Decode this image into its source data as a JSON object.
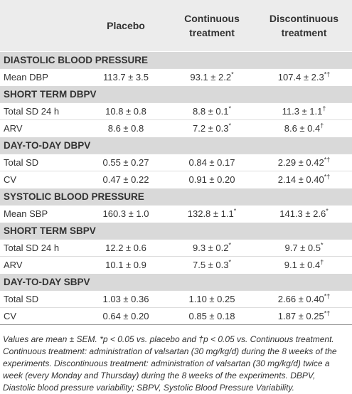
{
  "table": {
    "columns": [
      "",
      "Placebo",
      "Continuous treatment",
      "Discontinuous treatment"
    ],
    "sections": [
      {
        "title": "DIASTOLIC BLOOD PRESSURE",
        "rows": [
          {
            "label": "Mean DBP",
            "values": [
              {
                "text": "113.7 ± 3.5"
              },
              {
                "text": "93.1 ± 2.2",
                "sup": "*"
              },
              {
                "text": "107.4 ± 2.3",
                "sup": "*†"
              }
            ]
          }
        ]
      },
      {
        "title": "SHORT TERM DBPV",
        "rows": [
          {
            "label": "Total SD 24 h",
            "values": [
              {
                "text": "10.8 ± 0.8"
              },
              {
                "text": "8.8 ± 0.1",
                "sup": "*"
              },
              {
                "text": "11.3 ± 1.1",
                "sup": "†"
              }
            ]
          },
          {
            "label": "ARV",
            "values": [
              {
                "text": "8.6 ± 0.8"
              },
              {
                "text": "7.2 ± 0.3",
                "sup": "*"
              },
              {
                "text": "8.6 ± 0.4",
                "sup": "†"
              }
            ]
          }
        ]
      },
      {
        "title": "DAY-TO-DAY DBPV",
        "rows": [
          {
            "label": "Total SD",
            "values": [
              {
                "text": "0.55 ± 0.27"
              },
              {
                "text": "0.84 ± 0.17"
              },
              {
                "text": "2.29 ± 0.42",
                "sup": "*†"
              }
            ]
          },
          {
            "label": "CV",
            "values": [
              {
                "text": "0.47 ± 0.22"
              },
              {
                "text": "0.91 ± 0.20"
              },
              {
                "text": "2.14 ± 0.40",
                "sup": "*†"
              }
            ]
          }
        ]
      },
      {
        "title": "SYSTOLIC BLOOD PRESSURE",
        "rows": [
          {
            "label": "Mean SBP",
            "values": [
              {
                "text": "160.3 ± 1.0"
              },
              {
                "text": "132.8 ± 1.1",
                "sup": "*"
              },
              {
                "text": "141.3 ± 2.6",
                "sup": "*"
              }
            ]
          }
        ]
      },
      {
        "title": "SHORT TERM SBPV",
        "rows": [
          {
            "label": "Total SD 24 h",
            "values": [
              {
                "text": "12.2 ± 0.6"
              },
              {
                "text": "9.3 ± 0.2",
                "sup": "*"
              },
              {
                "text": "9.7 ± 0.5",
                "sup": "*"
              }
            ]
          },
          {
            "label": "ARV",
            "values": [
              {
                "text": "10.1 ± 0.9"
              },
              {
                "text": "7.5 ± 0.3",
                "sup": "*"
              },
              {
                "text": "9.1 ± 0.4",
                "sup": "†"
              }
            ]
          }
        ]
      },
      {
        "title": "DAY-TO-DAY SBPV",
        "rows": [
          {
            "label": "Total SD",
            "values": [
              {
                "text": "1.03 ± 0.36"
              },
              {
                "text": "1.10 ± 0.25"
              },
              {
                "text": "2.66 ± 0.40",
                "sup": "*†"
              }
            ]
          },
          {
            "label": "CV",
            "values": [
              {
                "text": "0.64 ± 0.20"
              },
              {
                "text": "0.85 ± 0.18"
              },
              {
                "text": "1.87 ± 0.25",
                "sup": "*†"
              }
            ]
          }
        ]
      }
    ],
    "note": "Values are mean ± SEM. *p < 0.05 vs. placebo and †p < 0.05 vs. Continuous treatment. Continuous treatment: administration of valsartan (30 mg/kg/d) during the 8 weeks of the experiments. Discontinuous treatment: administration of valsartan (30 mg/kg/d) twice a week (every Monday and Thursday) during the 8 weeks of the experiments. DBPV, Diastolic blood pressure variability; SBPV, Systolic Blood Pressure Variability."
  }
}
